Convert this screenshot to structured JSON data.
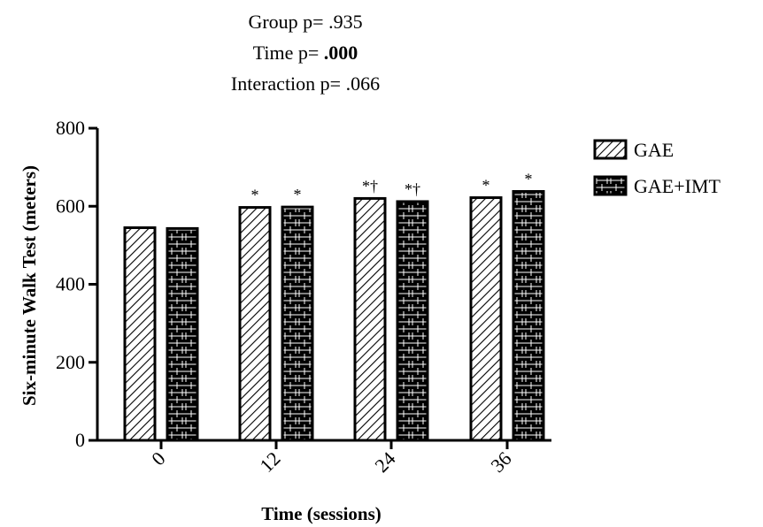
{
  "stats": {
    "group_label": "Group p=",
    "group_value": ".935",
    "time_label": "Time p=",
    "time_value": ".000",
    "interaction_label": "Interaction p=",
    "interaction_value": ".066"
  },
  "chart_data": {
    "type": "bar",
    "categories": [
      "0",
      "12",
      "24",
      "36"
    ],
    "series": [
      {
        "name": "GAE",
        "values": [
          545,
          597,
          620,
          622
        ],
        "annotations": [
          "",
          "*",
          "*†",
          "*"
        ],
        "pattern": "diagonal-hatch",
        "fill": "#ffffff"
      },
      {
        "name": "GAE+IMT",
        "values": [
          543,
          598,
          612,
          638
        ],
        "annotations": [
          "",
          "*",
          "*†",
          "*"
        ],
        "pattern": "brick",
        "fill": "#000000"
      }
    ],
    "xlabel": "Time (sessions)",
    "ylabel": "Six-minute Walk Test (meters)",
    "ylim": [
      0,
      800
    ],
    "yticks": [
      0,
      200,
      400,
      600,
      800
    ],
    "grid": false,
    "legend_position": "right"
  }
}
